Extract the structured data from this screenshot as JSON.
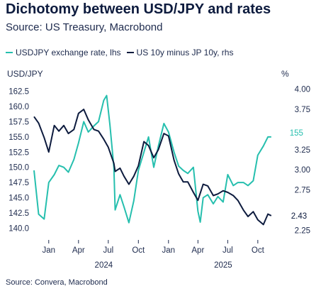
{
  "title": "Dichotomy between USD/JPY and rates",
  "subtitle": "Source: US Treasury, Macrobond",
  "source_note": "Source: Convera, Macrobond",
  "colors": {
    "usdjpy": "#26bfae",
    "spread": "#0d1b3e",
    "axis": "#1d2a4d"
  },
  "chart_data": {
    "type": "line",
    "legend_placement": "top-left",
    "grid": false,
    "x_tick_labels": [
      "Jan",
      "Apr",
      "Jul",
      "Oct",
      "Jan",
      "Apr",
      "Jul",
      "Oct"
    ],
    "x_tick_dates": [
      "2024-01-15",
      "2024-04-15",
      "2024-07-15",
      "2024-10-15",
      "2025-01-15",
      "2025-04-15",
      "2025-07-15",
      "2025-10-15"
    ],
    "x_year_labels": [
      "2024",
      "2025"
    ],
    "x_year_dates": [
      "2024-07-01",
      "2025-07-01"
    ],
    "xlim": [
      "2023-12-01",
      "2025-12-15"
    ],
    "left_axis": {
      "unit": "USD/JPY",
      "ylim": [
        139,
        163.5
      ],
      "ticks": [
        140.0,
        142.5,
        145.0,
        147.5,
        150.0,
        152.5,
        155.0,
        157.5,
        160.0,
        162.5
      ],
      "tick_labels": [
        "140.0",
        "142.5",
        "145.0",
        "147.5",
        "150.0",
        "152.5",
        "155.0",
        "157.5",
        "160.0",
        "162.5"
      ]
    },
    "right_axis": {
      "unit": "%",
      "ylim": [
        2.2,
        4.05
      ],
      "ticks": [
        2.25,
        2.5,
        2.75,
        3.0,
        3.25,
        3.5,
        3.75,
        4.0
      ],
      "tick_labels": [
        "2.25",
        "",
        "2.75",
        "3.00",
        "3.25",
        "",
        "3.75",
        "4.00"
      ]
    },
    "series": [
      {
        "name": "USDJPY exchange rate, lhs",
        "axis": "left",
        "end_label": "155",
        "x": [
          "2023-12-01",
          "2023-12-15",
          "2024-01-01",
          "2024-01-15",
          "2024-02-01",
          "2024-02-15",
          "2024-03-01",
          "2024-03-15",
          "2024-04-01",
          "2024-04-15",
          "2024-05-01",
          "2024-05-15",
          "2024-06-01",
          "2024-06-15",
          "2024-07-01",
          "2024-07-10",
          "2024-07-20",
          "2024-08-01",
          "2024-08-05",
          "2024-08-20",
          "2024-09-01",
          "2024-09-16",
          "2024-10-01",
          "2024-10-15",
          "2024-11-01",
          "2024-11-15",
          "2024-12-01",
          "2024-12-15",
          "2025-01-01",
          "2025-01-15",
          "2025-02-01",
          "2025-02-15",
          "2025-03-01",
          "2025-03-15",
          "2025-04-01",
          "2025-04-15",
          "2025-04-22",
          "2025-05-01",
          "2025-05-15",
          "2025-06-01",
          "2025-06-15",
          "2025-07-01",
          "2025-07-15",
          "2025-08-01",
          "2025-08-15",
          "2025-09-01",
          "2025-09-15",
          "2025-10-01",
          "2025-10-15",
          "2025-11-01",
          "2025-11-15",
          "2025-11-25"
        ],
        "values": [
          149.5,
          142.3,
          141.5,
          147.5,
          148.8,
          150.3,
          150.0,
          149.2,
          151.3,
          154.0,
          157.5,
          155.8,
          156.8,
          157.5,
          161.0,
          161.8,
          157.0,
          150.0,
          143.0,
          145.5,
          143.5,
          140.9,
          144.5,
          149.5,
          152.5,
          155.0,
          150.0,
          153.5,
          157.2,
          155.8,
          152.5,
          150.2,
          149.5,
          149.0,
          150.0,
          142.8,
          141.0,
          145.0,
          145.5,
          144.0,
          145.2,
          144.3,
          148.8,
          147.0,
          147.5,
          147.5,
          147.0,
          147.8,
          152.0,
          153.5,
          155.0,
          155.0
        ]
      },
      {
        "name": "US 10y minus JP 10y, rhs",
        "axis": "right",
        "end_label": "2.43",
        "x": [
          "2023-12-01",
          "2023-12-15",
          "2024-01-01",
          "2024-01-15",
          "2024-02-01",
          "2024-02-15",
          "2024-03-01",
          "2024-03-15",
          "2024-04-01",
          "2024-04-15",
          "2024-05-01",
          "2024-05-15",
          "2024-06-01",
          "2024-06-15",
          "2024-07-01",
          "2024-07-15",
          "2024-08-01",
          "2024-08-05",
          "2024-08-20",
          "2024-09-01",
          "2024-09-16",
          "2024-10-01",
          "2024-10-15",
          "2024-11-01",
          "2024-11-15",
          "2024-12-01",
          "2024-12-15",
          "2025-01-01",
          "2025-01-15",
          "2025-02-01",
          "2025-02-15",
          "2025-03-01",
          "2025-03-15",
          "2025-04-01",
          "2025-04-15",
          "2025-05-01",
          "2025-05-15",
          "2025-06-01",
          "2025-06-15",
          "2025-07-01",
          "2025-07-15",
          "2025-08-01",
          "2025-08-15",
          "2025-09-01",
          "2025-09-15",
          "2025-10-01",
          "2025-10-15",
          "2025-11-01",
          "2025-11-15",
          "2025-11-25"
        ],
        "values": [
          3.66,
          3.58,
          3.4,
          3.22,
          3.55,
          3.48,
          3.55,
          3.45,
          3.5,
          3.7,
          3.75,
          3.62,
          3.5,
          3.48,
          3.38,
          3.28,
          3.08,
          2.98,
          3.02,
          2.92,
          2.82,
          2.92,
          3.05,
          3.35,
          3.3,
          3.15,
          3.25,
          3.45,
          3.42,
          3.12,
          2.95,
          2.85,
          2.85,
          2.72,
          2.62,
          2.82,
          2.8,
          2.68,
          2.7,
          2.74,
          2.72,
          2.68,
          2.62,
          2.5,
          2.42,
          2.48,
          2.38,
          2.32,
          2.45,
          2.43
        ]
      }
    ]
  }
}
